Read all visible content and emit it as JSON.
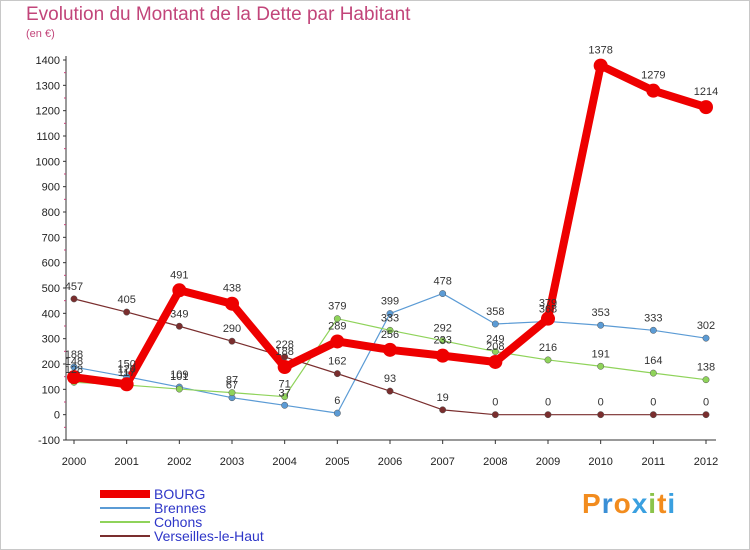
{
  "chart_data": {
    "type": "line",
    "title": "Evolution du Montant de la Dette par Habitant",
    "subtitle": "(en €)",
    "x": [
      "2000",
      "2001",
      "2002",
      "2003",
      "2004",
      "2005",
      "2006",
      "2007",
      "2008",
      "2009",
      "2010",
      "2011",
      "2012"
    ],
    "ylim": [
      -100,
      1400
    ],
    "yticks": [
      -100,
      0,
      100,
      200,
      300,
      400,
      500,
      600,
      700,
      800,
      900,
      1000,
      1100,
      1200,
      1300,
      1400
    ],
    "grid": false,
    "legend_position": "bottom-left",
    "series": [
      {
        "name": "BOURG",
        "color": "#ee0000",
        "values": [
          148,
          120,
          491,
          438,
          188,
          289,
          256,
          233,
          208,
          379,
          1378,
          1279,
          1214
        ]
      },
      {
        "name": "Brennes",
        "color": "#5b9bd5",
        "values": [
          188,
          150,
          109,
          67,
          37,
          6,
          399,
          478,
          358,
          368,
          353,
          333,
          302
        ]
      },
      {
        "name": "Cohons",
        "color": "#8fd35a",
        "values": [
          128,
          117,
          101,
          87,
          71,
          379,
          333,
          292,
          249,
          216,
          191,
          164,
          138
        ]
      },
      {
        "name": "Verseilles-le-Haut",
        "color": "#7a2e2e",
        "values": [
          457,
          405,
          349,
          290,
          228,
          162,
          93,
          19,
          0,
          0,
          0,
          0,
          0
        ]
      }
    ]
  },
  "branding": {
    "text": "Proxiti"
  }
}
